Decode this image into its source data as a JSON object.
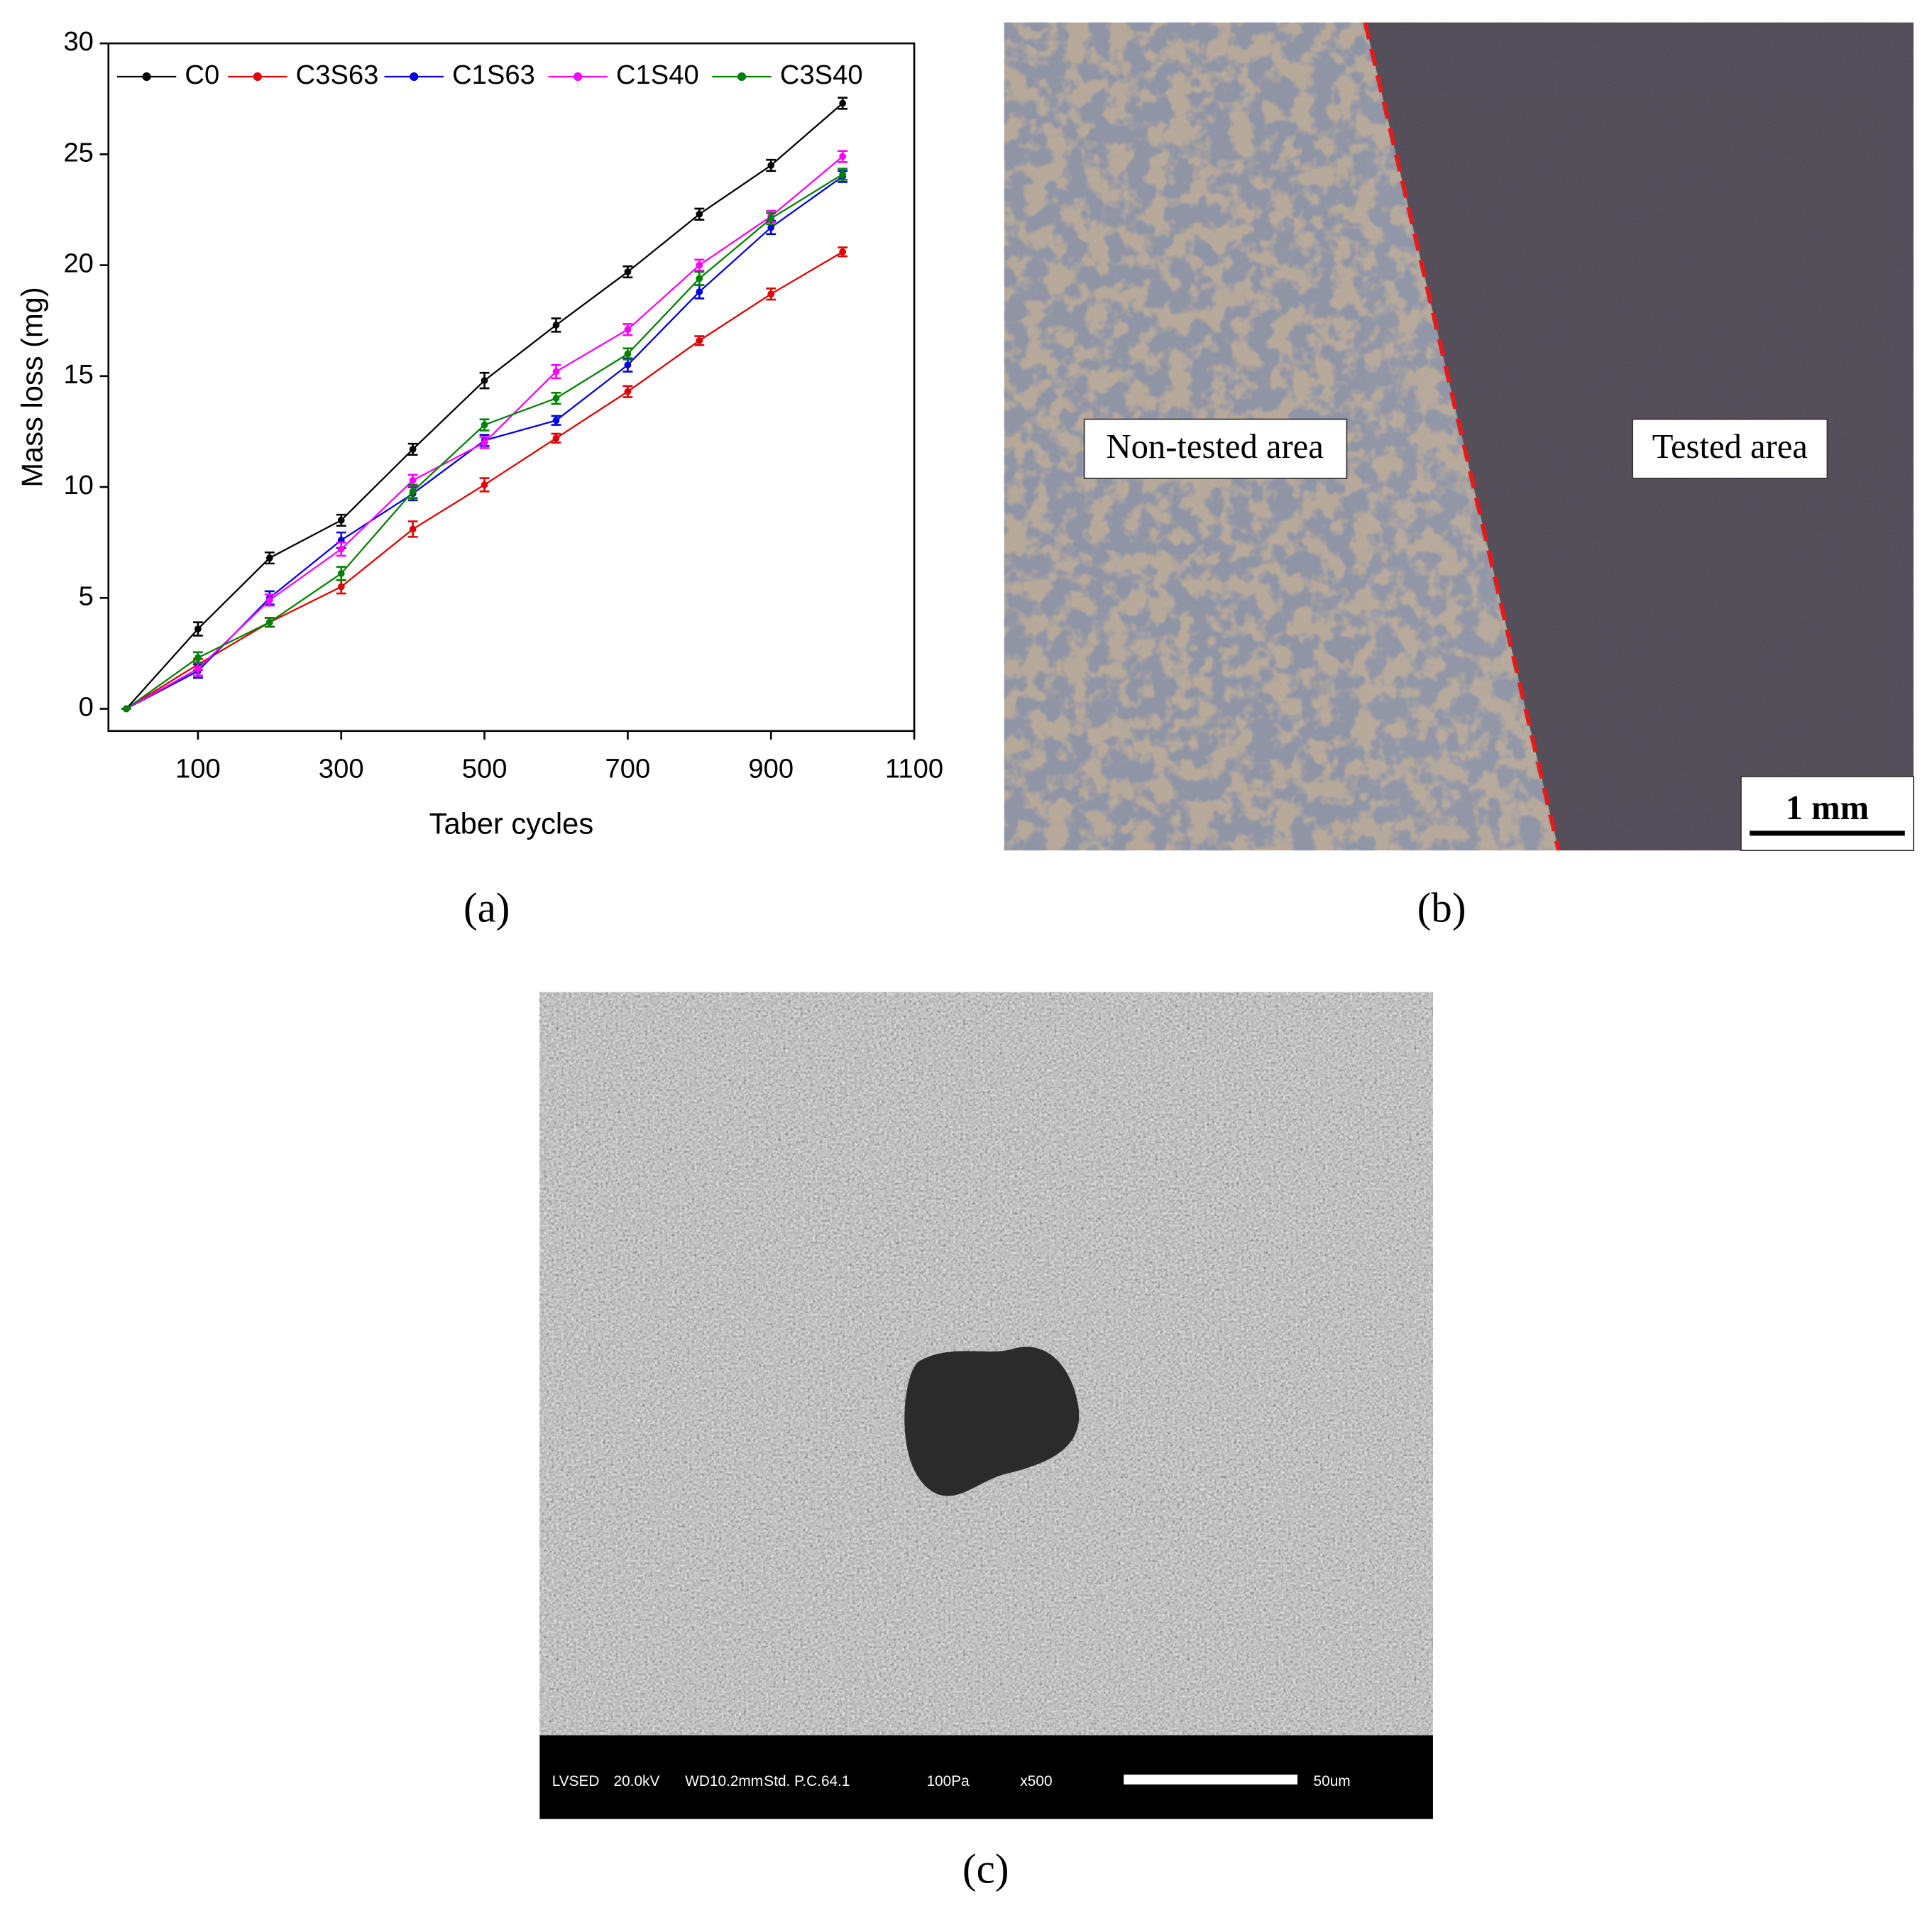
{
  "chart_data": {
    "type": "line",
    "xlabel": "Taber cycles",
    "ylabel": "Mass loss (mg)",
    "x": [
      0,
      100,
      200,
      300,
      400,
      500,
      600,
      700,
      800,
      900,
      1000
    ],
    "series": [
      {
        "name": "C0",
        "color": "#000000",
        "values": [
          0,
          3.6,
          6.8,
          8.5,
          11.7,
          14.8,
          17.3,
          19.7,
          22.3,
          24.5,
          27.3
        ],
        "errors": [
          0,
          0.3,
          0.25,
          0.25,
          0.25,
          0.35,
          0.3,
          0.25,
          0.25,
          0.25,
          0.25
        ]
      },
      {
        "name": "C3S63",
        "color": "#e00000",
        "values": [
          0,
          2.0,
          3.9,
          5.5,
          8.1,
          10.1,
          12.2,
          14.3,
          16.6,
          18.7,
          20.6
        ],
        "errors": [
          0,
          0.25,
          0.2,
          0.3,
          0.35,
          0.3,
          0.2,
          0.25,
          0.2,
          0.25,
          0.2
        ]
      },
      {
        "name": "C1S63",
        "color": "#0000e0",
        "values": [
          0,
          1.7,
          5.0,
          7.6,
          9.7,
          12.1,
          13.0,
          15.5,
          18.8,
          21.7,
          24.0
        ],
        "errors": [
          0,
          0.3,
          0.3,
          0.35,
          0.3,
          0.25,
          0.2,
          0.3,
          0.3,
          0.3,
          0.25
        ]
      },
      {
        "name": "C1S40",
        "color": "#ff00ff",
        "values": [
          0,
          1.8,
          4.9,
          7.2,
          10.3,
          12.0,
          15.2,
          17.1,
          20.0,
          22.2,
          24.9
        ],
        "errors": [
          0,
          0.3,
          0.25,
          0.3,
          0.25,
          0.25,
          0.3,
          0.25,
          0.25,
          0.25,
          0.25
        ]
      },
      {
        "name": "C3S40",
        "color": "#008000",
        "values": [
          0,
          2.3,
          3.9,
          6.1,
          9.8,
          12.8,
          14.0,
          16.0,
          19.4,
          22.1,
          24.1
        ],
        "errors": [
          0,
          0.25,
          0.2,
          0.3,
          0.3,
          0.25,
          0.25,
          0.25,
          0.3,
          0.25,
          0.25
        ]
      }
    ],
    "xlim": [
      -25,
      1100
    ],
    "xticks": [
      100,
      300,
      500,
      700,
      900,
      1100
    ],
    "ylim": [
      -1,
      30
    ],
    "yticks": [
      0,
      5,
      10,
      15,
      20,
      25,
      30
    ],
    "grid": false,
    "legend": "top"
  },
  "figure": {
    "panel_labels": [
      "(a)",
      "(b)",
      "(c)"
    ],
    "photo": {
      "left_label": "Non-tested area",
      "right_label": "Tested area",
      "scale_bar": "1 mm"
    },
    "sem": {
      "info": [
        "LVSED",
        "20.0kV",
        "WD10.2mm",
        "Std. P.C.64.1",
        "100Pa",
        "x500",
        "50um"
      ]
    }
  }
}
